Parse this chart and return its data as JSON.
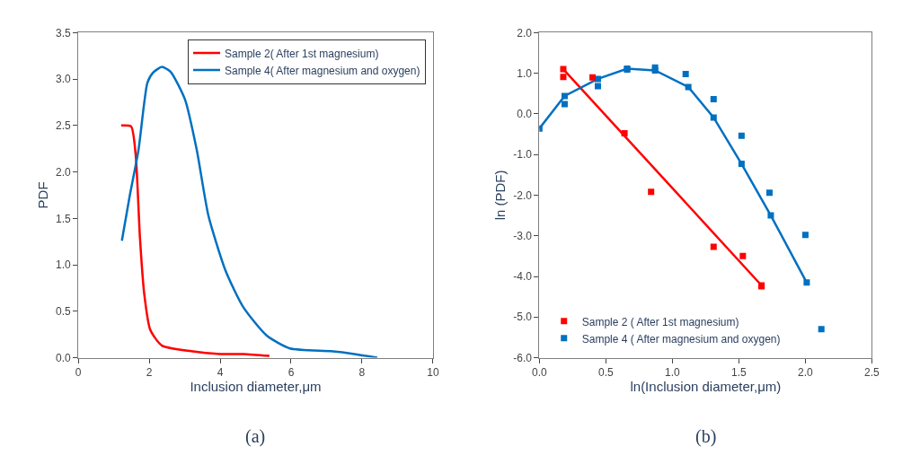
{
  "chart_data": [
    {
      "type": "line",
      "xlabel": "Inclusion diameter,μm",
      "ylabel": "PDF",
      "annotations": [
        "(a)"
      ],
      "xlim": [
        0,
        10
      ],
      "xticks": [
        0,
        2,
        4,
        6,
        8,
        10
      ],
      "ylim": [
        0,
        3.5
      ],
      "yticks": [
        {
          "value": 0,
          "label": "0.0"
        },
        {
          "value": 0.5,
          "label": "0.5"
        },
        {
          "value": 1,
          "label": "1.0"
        },
        {
          "value": 1.5,
          "label": "1.5"
        },
        {
          "value": 2,
          "label": "2.0"
        },
        {
          "value": 2.5,
          "label": "2.5"
        },
        {
          "value": 3,
          "label": "3.0"
        },
        {
          "value": 3.5,
          "label": "3.5"
        }
      ],
      "legend": "top right",
      "marker": "none",
      "line_style": "solid",
      "series": [
        {
          "name": "Sample 2( After 1st magnesium)",
          "color": "#ff0000",
          "x": [
            1.21,
            1.49,
            1.62,
            1.74,
            1.86,
            2.03,
            2.36,
            3.18,
            4.0,
            4.66,
            5.39
          ],
          "values": [
            2.5,
            2.49,
            2.18,
            1.29,
            0.69,
            0.3,
            0.13,
            0.07,
            0.04,
            0.04,
            0.02
          ]
        },
        {
          "name": "Sample 4( After magnesium and oxygen)",
          "color": "#0070c0",
          "x": [
            1.23,
            1.45,
            1.7,
            1.95,
            2.11,
            2.36,
            2.6,
            3.01,
            3.34,
            3.67,
            4.16,
            4.66,
            5.31,
            5.97,
            7.12,
            7.78,
            8.43
          ],
          "values": [
            1.26,
            1.74,
            2.24,
            2.96,
            3.07,
            3.13,
            3.08,
            2.78,
            2.24,
            1.53,
            0.93,
            0.54,
            0.24,
            0.1,
            0.07,
            0.04,
            0.0
          ]
        }
      ]
    },
    {
      "type": "scatter",
      "xlabel": "ln(Inclusion diameter,μm)",
      "ylabel": "ln (PDF)",
      "annotations": [
        "(b)"
      ],
      "xlim": [
        0,
        2.5
      ],
      "xticks": [
        {
          "value": 0,
          "label": "0.0"
        },
        {
          "value": 0.5,
          "label": "0.5"
        },
        {
          "value": 1,
          "label": "1.0"
        },
        {
          "value": 1.5,
          "label": "1.5"
        },
        {
          "value": 2,
          "label": "2.0"
        },
        {
          "value": 2.5,
          "label": "2.5"
        }
      ],
      "ylim": [
        -6,
        2
      ],
      "yticks": [
        {
          "value": -6,
          "label": "-6.0"
        },
        {
          "value": -5,
          "label": "-5.0"
        },
        {
          "value": -4,
          "label": "-4.0"
        },
        {
          "value": -3,
          "label": "-3.0"
        },
        {
          "value": -2,
          "label": "-2.0"
        },
        {
          "value": -1,
          "label": "-1.0"
        },
        {
          "value": 0,
          "label": "0.0"
        },
        {
          "value": 1,
          "label": "1.0"
        },
        {
          "value": 2,
          "label": "2.0"
        }
      ],
      "legend": "bottom left",
      "marker": "square",
      "series": [
        {
          "type": "line",
          "color": "#ff0000",
          "x": [
            0.18,
            1.67
          ],
          "values": [
            1.1,
            -4.22
          ]
        },
        {
          "type": "line",
          "color": "#0070c0",
          "x": [
            0,
            0.19,
            0.44,
            0.66,
            0.87,
            1.12,
            1.31,
            1.52,
            1.74,
            2.01
          ],
          "values": [
            -0.36,
            0.44,
            0.86,
            1.11,
            1.07,
            0.66,
            -0.09,
            -1.23,
            -2.5,
            -4.15
          ]
        },
        {
          "name": "Sample 2 ( After 1st magnesium)",
          "color": "#ff0000",
          "x": [
            0.18,
            0.4,
            0.64,
            0.84,
            1.31,
            1.53,
            1.67
          ],
          "values": [
            0.91,
            0.9,
            -0.48,
            -1.92,
            -3.27,
            -3.5,
            -4.24
          ]
        },
        {
          "name": "Sample 4 ( After magnesium and oxygen)",
          "color": "#0070c0",
          "x": [
            0.19,
            0.44,
            0.66,
            0.87,
            1.1,
            1.31,
            1.52,
            1.73,
            2.0,
            2.12
          ],
          "values": [
            0.24,
            0.68,
            1.09,
            1.14,
            0.98,
            0.36,
            -0.54,
            -1.94,
            -2.98,
            -5.3
          ]
        }
      ]
    }
  ]
}
